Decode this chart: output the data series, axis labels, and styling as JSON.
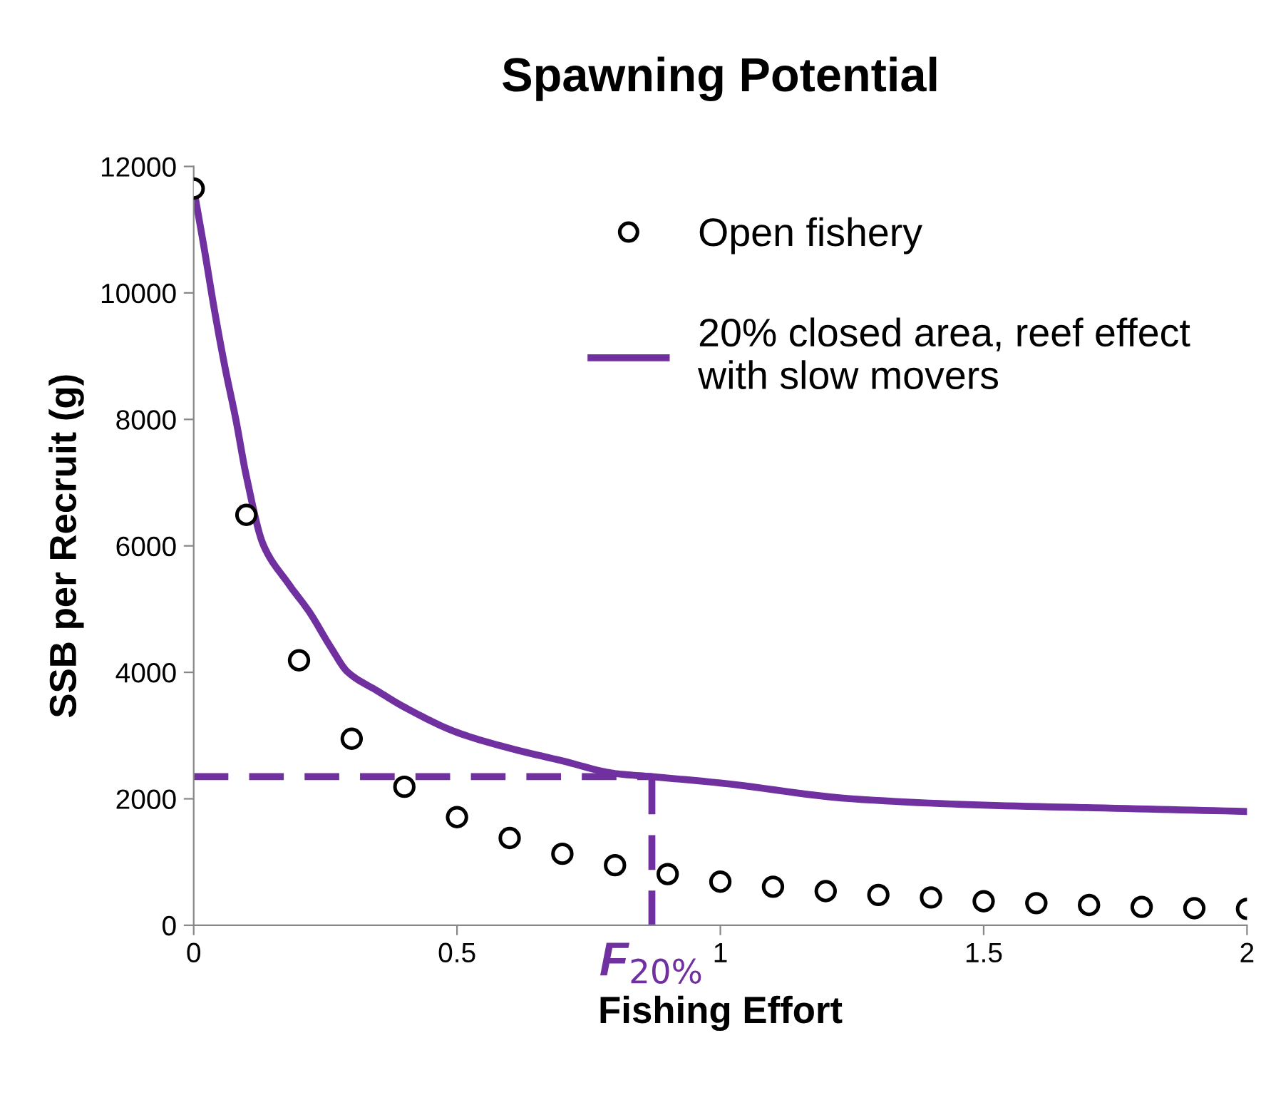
{
  "chart_data": {
    "type": "scatter",
    "title": "Spawning Potential",
    "xlabel": "Fishing Effort",
    "ylabel": "SSB per Recruit (g)",
    "xlim": [
      0,
      2
    ],
    "ylim": [
      0,
      12000
    ],
    "xticks": [
      0,
      0.5,
      1,
      1.5,
      2
    ],
    "yticks": [
      0,
      2000,
      4000,
      6000,
      8000,
      10000,
      12000
    ],
    "grid": false,
    "legend": "top right",
    "marker": "circle",
    "series": [
      {
        "name": "Open fishery",
        "color": "#000000",
        "x": [
          0,
          0.1,
          0.2,
          0.3,
          0.4,
          0.5,
          0.6,
          0.7,
          0.8,
          0.9,
          1.0,
          1.1,
          1.2,
          1.3,
          1.4,
          1.5,
          1.6,
          1.7,
          1.8,
          1.9,
          2.0
        ],
        "values": [
          11650,
          6490,
          4190,
          2950,
          2190,
          1710,
          1380,
          1130,
          950,
          810,
          690,
          610,
          540,
          480,
          440,
          380,
          350,
          320,
          290,
          270,
          260
        ]
      },
      {
        "name": "20% closed area, reef effect with slow movers",
        "type": "line",
        "color": "#7030a0",
        "marker": "none",
        "line_style": "solid",
        "x": [
          0,
          0.02,
          0.04,
          0.06,
          0.08,
          0.1,
          0.133,
          0.18,
          0.22,
          0.26,
          0.293,
          0.35,
          0.4,
          0.5,
          0.6,
          0.7,
          0.8,
          0.87,
          1.0,
          1.25,
          1.5,
          1.75,
          2.0
        ],
        "values": [
          11650,
          10700,
          9700,
          8800,
          8000,
          7100,
          6000,
          5400,
          4950,
          4400,
          4000,
          3700,
          3450,
          3050,
          2800,
          2600,
          2400,
          2350,
          2250,
          2000,
          1900,
          1850,
          1800
        ]
      }
    ],
    "ref_lines": [
      {
        "axis": "y",
        "value": 2350,
        "color": "#7030a0",
        "line_style": "dashed"
      },
      {
        "axis": "x",
        "value": 0.87,
        "label": "F$_{20%}$",
        "color": "#7030a0",
        "line_style": "dashed"
      }
    ]
  }
}
